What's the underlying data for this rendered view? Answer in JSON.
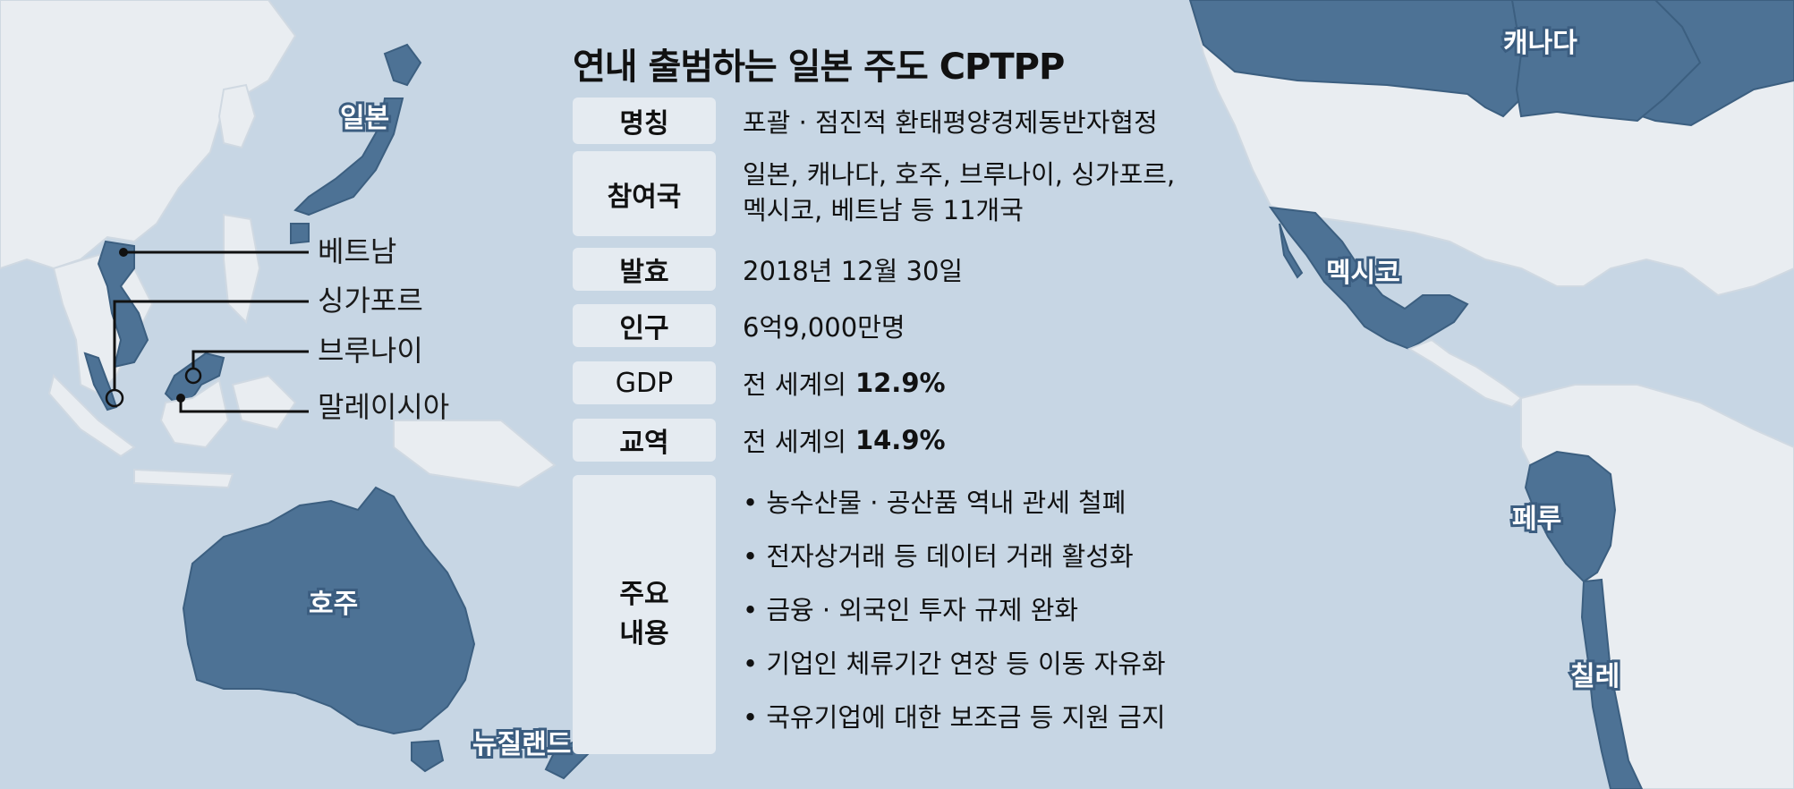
{
  "panel": {
    "title": "연내 출범하는 일본 주도 CPTPP",
    "rows": [
      {
        "key": "명칭",
        "value": "포괄 · 점진적 환태평양경제동반자협정"
      },
      {
        "key": "참여국",
        "value_line1": "일본, 캐나다, 호주, 브루나이, 싱가포르,",
        "value_line2": "멕시코, 베트남  등 11개국"
      },
      {
        "key": "발효",
        "value": "2018년 12월 30일"
      },
      {
        "key": "인구",
        "value": "6억9,000만명"
      },
      {
        "key": "GDP",
        "value_prefix": "전 세계의",
        "value_bold": "12.9%"
      },
      {
        "key": "교역",
        "value_prefix": "전 세계의",
        "value_bold": "14.9%"
      }
    ],
    "main_content": {
      "key": "주요\n내용",
      "bullets": [
        "• 농수산물 · 공산품 역내 관세 철폐",
        "• 전자상거래 등 데이터 거래 활성화",
        "• 금융 · 외국인 투자 규제 완화",
        "• 기업인 체류기간 연장 등 이동 자유화",
        "• 국유기업에 대한 보조금 등 지원 금지"
      ]
    }
  },
  "map": {
    "countries": {
      "japan": "일본",
      "australia": "호주",
      "new_zealand": "뉴질랜드",
      "canada": "캐나다",
      "mexico": "멕시코",
      "peru": "페루",
      "chile": "칠레"
    },
    "callouts": {
      "vietnam": "베트남",
      "singapore": "싱가포르",
      "brunei": "브루나이",
      "malaysia": "말레이시아"
    },
    "colors": {
      "ocean": "#c7d6e4",
      "member": "#4d7295",
      "non_member": "#e9edf1"
    }
  }
}
